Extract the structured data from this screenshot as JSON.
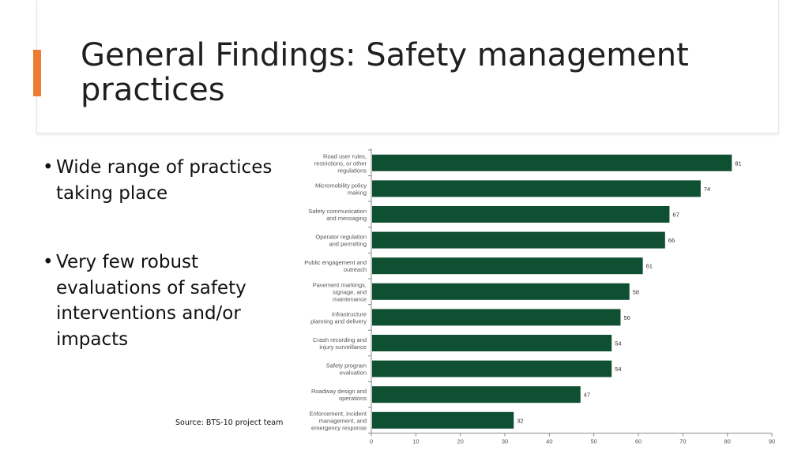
{
  "slide": {
    "title": "General Findings: Safety management practices",
    "accent_color": "#ED7D31",
    "bullets": [
      "Wide range of practices taking place",
      "Very few robust evaluations of safety interventions and/or impacts"
    ],
    "source": "Source: BTS-10 project team"
  },
  "chart_data": {
    "type": "bar",
    "orientation": "horizontal",
    "bar_color": "#0F5032",
    "categories": [
      [
        "Road user rules,",
        "restrictions, or other",
        "regulations"
      ],
      [
        "Micromobility policy",
        "making"
      ],
      [
        "Safety communication",
        "and messaging"
      ],
      [
        "Operator regulation",
        "and permitting"
      ],
      [
        "Public engagement and",
        "outreach"
      ],
      [
        "Pavement markings,",
        "signage, and",
        "maintenance"
      ],
      [
        "Infrastructure",
        "planning and delivery"
      ],
      [
        "Crash recording and",
        "injury surveillance"
      ],
      [
        "Safety program",
        "evaluation"
      ],
      [
        "Roadway design and",
        "operations"
      ],
      [
        "Enforcement, incident",
        "management, and",
        "emergency response"
      ]
    ],
    "values": [
      81,
      74,
      67,
      66,
      61,
      58,
      56,
      54,
      54,
      47,
      32
    ],
    "xlim": [
      0,
      90
    ],
    "xticks": [
      0,
      10,
      20,
      30,
      40,
      50,
      60,
      70,
      80,
      90
    ],
    "grid": false
  }
}
